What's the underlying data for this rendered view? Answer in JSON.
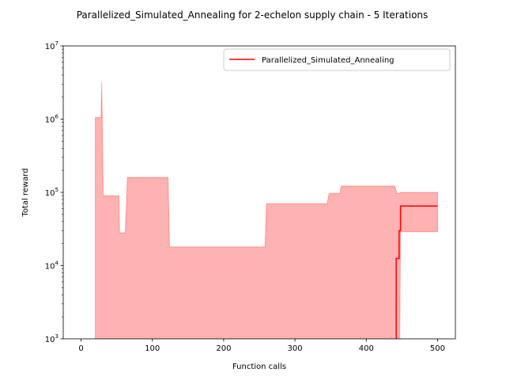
{
  "chart_data": {
    "type": "line",
    "title": "Parallelized_Simulated_Annealing for 2-echelon supply chain - 5 Iterations",
    "xlabel": "Function calls",
    "ylabel": "Total reward",
    "xlim": [
      -25,
      525
    ],
    "ylim": [
      1000,
      10000000
    ],
    "yscale": "log",
    "grid": false,
    "legend_position": "top-right",
    "x_ticks": [
      0,
      100,
      200,
      300,
      400,
      500
    ],
    "y_ticks": [
      {
        "value": 1000,
        "base": "10",
        "exp": "3"
      },
      {
        "value": 10000,
        "base": "10",
        "exp": "4"
      },
      {
        "value": 100000,
        "base": "10",
        "exp": "5"
      },
      {
        "value": 1000000,
        "base": "10",
        "exp": "6"
      },
      {
        "value": 10000000,
        "base": "10",
        "exp": "7"
      }
    ],
    "series": [
      {
        "name": "Parallelized_Simulated_Annealing",
        "color": "#ff0000",
        "x": [
          442,
          442,
          446,
          446,
          448,
          448,
          500
        ],
        "y": [
          1000,
          12500,
          12500,
          30000,
          30000,
          65000,
          65000
        ]
      }
    ],
    "band": {
      "color": "#ff0000",
      "opacity": 0.3,
      "x": [
        20,
        25,
        28,
        29,
        31,
        53,
        54,
        62,
        65,
        122,
        124,
        258,
        260,
        345,
        348,
        363,
        365,
        440,
        443,
        447,
        448,
        500
      ],
      "upper": [
        1050000,
        1050000,
        1050000,
        3200000,
        90000,
        90000,
        28000,
        28000,
        160000,
        160000,
        18000,
        18000,
        70000,
        70000,
        97000,
        97000,
        122000,
        122000,
        97000,
        97000,
        100000,
        100000
      ],
      "lower": [
        1000,
        1000,
        1000,
        1000,
        1000,
        1000,
        1000,
        1000,
        1000,
        1000,
        1000,
        1000,
        1000,
        1000,
        1000,
        1000,
        1000,
        1000,
        1000,
        1000,
        29000,
        29000
      ]
    }
  }
}
